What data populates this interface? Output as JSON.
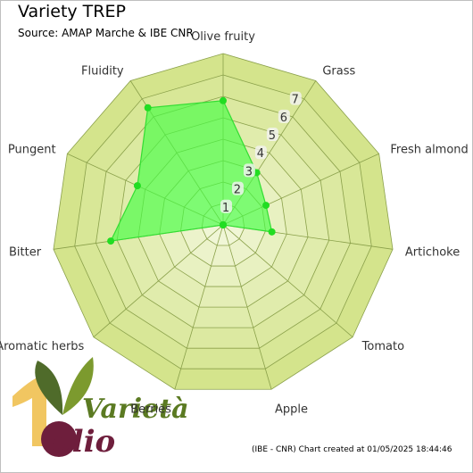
{
  "header": {
    "title": "Variety TREP",
    "subtitle": "Source: AMAP Marche & IBE CNR"
  },
  "footer": {
    "credit": "(IBE - CNR) Chart created at 01/05/2025 18:44:46"
  },
  "logo": {
    "word1": "Varietà",
    "word2": "olio",
    "numeral": "1"
  },
  "colors": {
    "ring_outer": "#d4e48c",
    "ring_inner": "#f4f8e0",
    "grid": "#8aa04a",
    "series_fill": "#44ff44",
    "series_stroke": "#33dd33",
    "marker": "#22dd22",
    "tick_bg": "#f2f2f2"
  },
  "chart_data": {
    "type": "radar",
    "categories": [
      "Olive fruity",
      "Grass",
      "Fresh almond",
      "Artichoke",
      "Tomato",
      "Apple",
      "Berries",
      "Aromatic herbs",
      "Bitter",
      "Pungent",
      "Fluidity"
    ],
    "series": [
      {
        "name": "",
        "values": [
          5.8,
          2.9,
          2.2,
          2.3,
          0,
          0,
          0,
          0,
          5.3,
          4.4,
          6.5
        ]
      }
    ],
    "rlim": [
      0,
      8
    ],
    "rticks": [
      1,
      2,
      3,
      4,
      5,
      6,
      7
    ],
    "grid": true
  }
}
